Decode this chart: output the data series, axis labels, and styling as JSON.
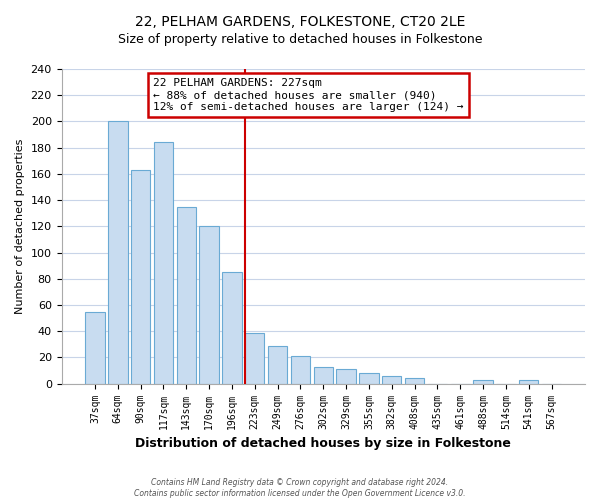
{
  "title": "22, PELHAM GARDENS, FOLKESTONE, CT20 2LE",
  "subtitle": "Size of property relative to detached houses in Folkestone",
  "xlabel": "Distribution of detached houses by size in Folkestone",
  "ylabel": "Number of detached properties",
  "bin_labels": [
    "37sqm",
    "64sqm",
    "90sqm",
    "117sqm",
    "143sqm",
    "170sqm",
    "196sqm",
    "223sqm",
    "249sqm",
    "276sqm",
    "302sqm",
    "329sqm",
    "355sqm",
    "382sqm",
    "408sqm",
    "435sqm",
    "461sqm",
    "488sqm",
    "514sqm",
    "541sqm",
    "567sqm"
  ],
  "bin_heights": [
    55,
    200,
    163,
    184,
    135,
    120,
    85,
    39,
    29,
    21,
    13,
    11,
    8,
    6,
    4,
    0,
    0,
    3,
    0,
    3,
    0
  ],
  "bar_color": "#c8dcf0",
  "bar_edge_color": "#6aaad4",
  "vline_x_index": 7,
  "vline_color": "#cc0000",
  "annotation_line1": "22 PELHAM GARDENS: 227sqm",
  "annotation_line2": "← 88% of detached houses are smaller (940)",
  "annotation_line3": "12% of semi-detached houses are larger (124) →",
  "annotation_box_color": "#cc0000",
  "ylim": [
    0,
    240
  ],
  "yticks": [
    0,
    20,
    40,
    60,
    80,
    100,
    120,
    140,
    160,
    180,
    200,
    220,
    240
  ],
  "grid_color": "#c8d4e8",
  "footer_line1": "Contains HM Land Registry data © Crown copyright and database right 2024.",
  "footer_line2": "Contains public sector information licensed under the Open Government Licence v3.0.",
  "bg_color": "#ffffff",
  "title_fontsize": 10,
  "subtitle_fontsize": 9
}
